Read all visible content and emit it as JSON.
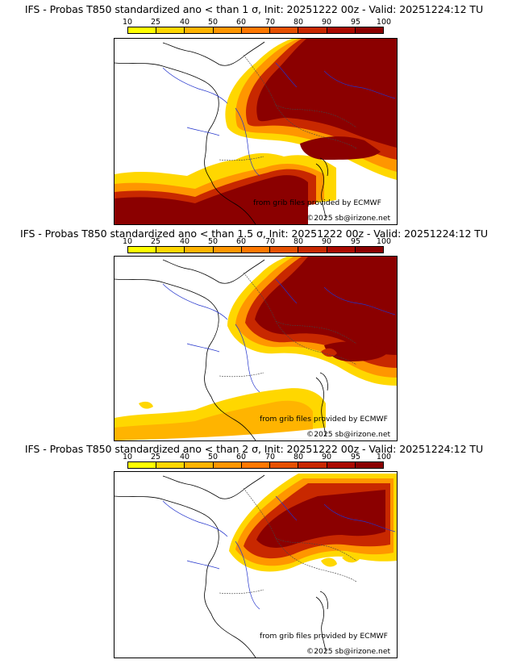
{
  "legend": {
    "ticks": [
      "10",
      "25",
      "40",
      "50",
      "60",
      "70",
      "80",
      "90",
      "95",
      "100"
    ],
    "colors": [
      "#ffff00",
      "#ffd700",
      "#ffb400",
      "#ff9600",
      "#ff7800",
      "#e65000",
      "#c82800",
      "#aa0a00",
      "#8b0000"
    ]
  },
  "panels": [
    {
      "title": "IFS - Probas T850  standardized ano < than 1 σ, Init: 20251222 00z - Valid: 20251224:12 TU",
      "credit": "from grib files provided by ECMWF",
      "site": "©2025 sb@irizone.net"
    },
    {
      "title": "IFS - Probas T850  standardized ano < than 1.5 σ, Init: 20251222 00z - Valid: 20251224:12 TU",
      "credit": "from grib files provided by ECMWF",
      "site": "©2025 sb@irizone.net"
    },
    {
      "title": "IFS - Probas T850  standardized ano < than 2 σ, Init: 20251222 00z - Valid: 20251224:12 TU",
      "credit": "from grib files provided by ECMWF",
      "site": "©2025 sb@irizone.net"
    }
  ]
}
